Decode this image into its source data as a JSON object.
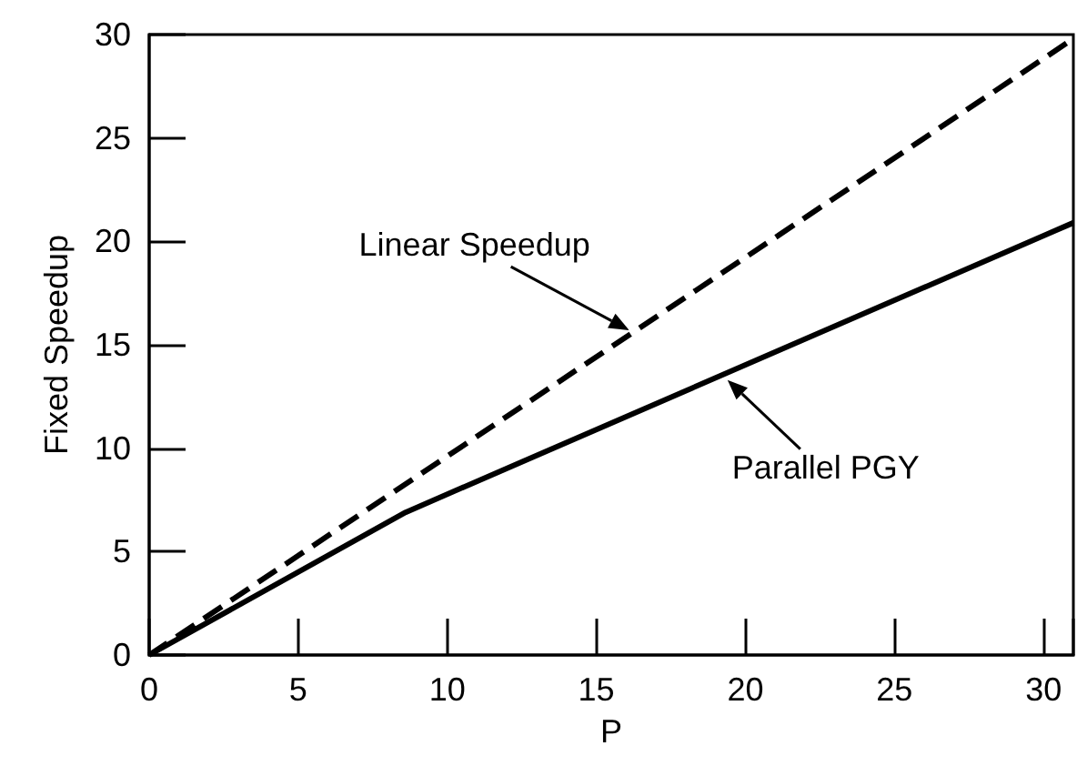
{
  "chart_data": {
    "type": "line",
    "xlabel": "P",
    "ylabel": "Fixed Speedup",
    "xlim": [
      0,
      31
    ],
    "ylim": [
      0,
      30
    ],
    "xticks": [
      0,
      5,
      10,
      15,
      20,
      25,
      30
    ],
    "yticks": [
      0,
      5,
      10,
      15,
      20,
      25,
      30
    ],
    "grid": false,
    "marker": "none",
    "series": [
      {
        "color": "#000000",
        "line_style": "dashed",
        "x": [
          0,
          31
        ],
        "values": [
          0,
          29.8
        ]
      },
      {
        "color": "#000000",
        "line_style": "solid",
        "x": [
          0,
          8.6,
          31
        ],
        "values": [
          0,
          6.9,
          20.9
        ]
      }
    ],
    "annotations": [
      {
        "text": "Linear Speedup",
        "x": 16.1,
        "y": 15.7
      },
      {
        "text": "Parallel PGY",
        "x": 19.4,
        "y": 13.3
      }
    ]
  }
}
